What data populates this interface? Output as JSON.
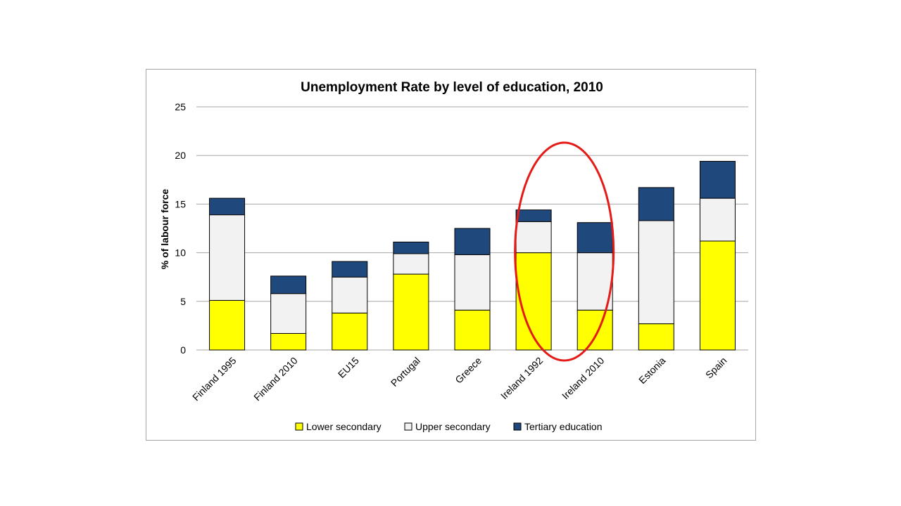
{
  "chart_data": {
    "type": "bar",
    "stacked": true,
    "title": "Unemployment Rate by level of education, 2010",
    "xlabel": "",
    "ylabel": "% of labour force",
    "ylim": [
      0,
      25
    ],
    "yticks": [
      "0",
      "5",
      "10",
      "15",
      "20",
      "25"
    ],
    "grid": true,
    "legend_position": "bottom",
    "categories": [
      "Finland 1995",
      "Finland 2010",
      "EU15",
      "Portugal",
      "Greece",
      "Ireland 1992",
      "Ireland 2010",
      "Estonia",
      "Spain"
    ],
    "series": [
      {
        "name": "Lower secondary",
        "color": "#ffff00",
        "values": [
          5.1,
          1.7,
          3.8,
          7.8,
          4.1,
          10.0,
          4.1,
          2.7,
          11.2
        ]
      },
      {
        "name": "Upper secondary",
        "color": "#f2f2f2",
        "values": [
          8.8,
          4.1,
          3.7,
          2.1,
          5.7,
          3.2,
          5.9,
          10.6,
          4.4
        ]
      },
      {
        "name": "Tertiary education",
        "color": "#1f497d",
        "values": [
          1.7,
          1.8,
          1.6,
          1.2,
          2.7,
          1.2,
          3.1,
          3.4,
          3.8
        ]
      }
    ],
    "annotation": {
      "shape": "ellipse",
      "color": "#e41b17",
      "categories": [
        "Ireland 1992",
        "Ireland 2010"
      ]
    }
  }
}
